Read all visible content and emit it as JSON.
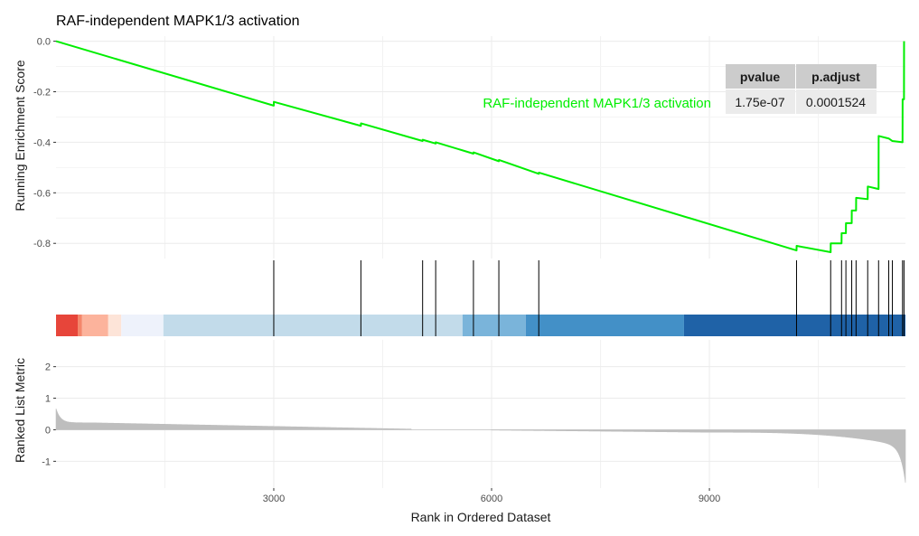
{
  "chart_data": {
    "type": "line",
    "title": "RAF-independent MAPK1/3 activation",
    "n_genes": 11700,
    "xlim": [
      1,
      11700
    ],
    "x_ticks": [
      3000,
      6000,
      9000
    ],
    "x_tick_labels": [
      "3000",
      "6000",
      "9000"
    ],
    "xlabel": "Rank in Ordered Dataset",
    "panels": {
      "running_score": {
        "ylabel": "Running Enrichment Score",
        "ylim": [
          -0.86,
          0.02
        ],
        "y_ticks": [
          0.0,
          -0.2,
          -0.4,
          -0.6,
          -0.8
        ],
        "y_tick_labels": [
          "0.0",
          "-0.2",
          "-0.4",
          "-0.6",
          "-0.8"
        ],
        "line_color": "#00EE00"
      },
      "ranked_metric": {
        "ylabel": "Ranked List Metric",
        "ylim": [
          -1.85,
          2.85
        ],
        "y_ticks": [
          2,
          1,
          0,
          -1
        ],
        "y_tick_labels": [
          "2",
          "1",
          "0",
          "-1"
        ],
        "fill_color": "#BEBEBE",
        "zero_gap": [
          4900,
          6000
        ]
      }
    },
    "hit_ranks": [
      3000,
      4200,
      5050,
      5230,
      5750,
      6100,
      6650,
      10200,
      10670,
      10820,
      10880,
      10960,
      11020,
      11180,
      11330,
      11470,
      11520,
      11660,
      11680
    ],
    "running_score_points": [
      [
        1,
        0.0
      ],
      [
        3000,
        -0.255
      ],
      [
        3001,
        -0.24
      ],
      [
        4200,
        -0.335
      ],
      [
        4201,
        -0.325
      ],
      [
        5050,
        -0.395
      ],
      [
        5051,
        -0.39
      ],
      [
        5230,
        -0.405
      ],
      [
        5231,
        -0.4
      ],
      [
        5750,
        -0.445
      ],
      [
        5751,
        -0.44
      ],
      [
        6100,
        -0.475
      ],
      [
        6101,
        -0.47
      ],
      [
        6650,
        -0.525
      ],
      [
        6651,
        -0.52
      ],
      [
        10200,
        -0.828
      ],
      [
        10201,
        -0.81
      ],
      [
        10670,
        -0.835
      ],
      [
        10671,
        -0.8
      ],
      [
        10820,
        -0.8
      ],
      [
        10821,
        -0.76
      ],
      [
        10880,
        -0.76
      ],
      [
        10881,
        -0.72
      ],
      [
        10960,
        -0.72
      ],
      [
        10961,
        -0.67
      ],
      [
        11020,
        -0.67
      ],
      [
        11021,
        -0.62
      ],
      [
        11180,
        -0.625
      ],
      [
        11181,
        -0.575
      ],
      [
        11330,
        -0.585
      ],
      [
        11331,
        -0.375
      ],
      [
        11470,
        -0.385
      ],
      [
        11520,
        -0.395
      ],
      [
        11660,
        -0.4
      ],
      [
        11661,
        -0.23
      ],
      [
        11680,
        -0.23
      ],
      [
        11681,
        0.0
      ]
    ],
    "color_bands": [
      {
        "from": 1,
        "to": 300,
        "color": "#E7453A"
      },
      {
        "from": 300,
        "to": 360,
        "color": "#F4866B"
      },
      {
        "from": 360,
        "to": 720,
        "color": "#FCB39C"
      },
      {
        "from": 720,
        "to": 900,
        "color": "#FDE4D8"
      },
      {
        "from": 900,
        "to": 1480,
        "color": "#EEF2FB"
      },
      {
        "from": 1480,
        "to": 5600,
        "color": "#C2DBEA"
      },
      {
        "from": 5600,
        "to": 6470,
        "color": "#7AB4DA"
      },
      {
        "from": 6470,
        "to": 8650,
        "color": "#4390C7"
      },
      {
        "from": 8650,
        "to": 11700,
        "color": "#1F62A7"
      }
    ],
    "table": {
      "headers": [
        "pvalue",
        "p.adjust"
      ],
      "rows": [
        {
          "label": "RAF-independent MAPK1/3 activation",
          "label_color": "#00EE00",
          "values": [
            "1.75e-07",
            "0.0001524"
          ]
        }
      ]
    }
  }
}
